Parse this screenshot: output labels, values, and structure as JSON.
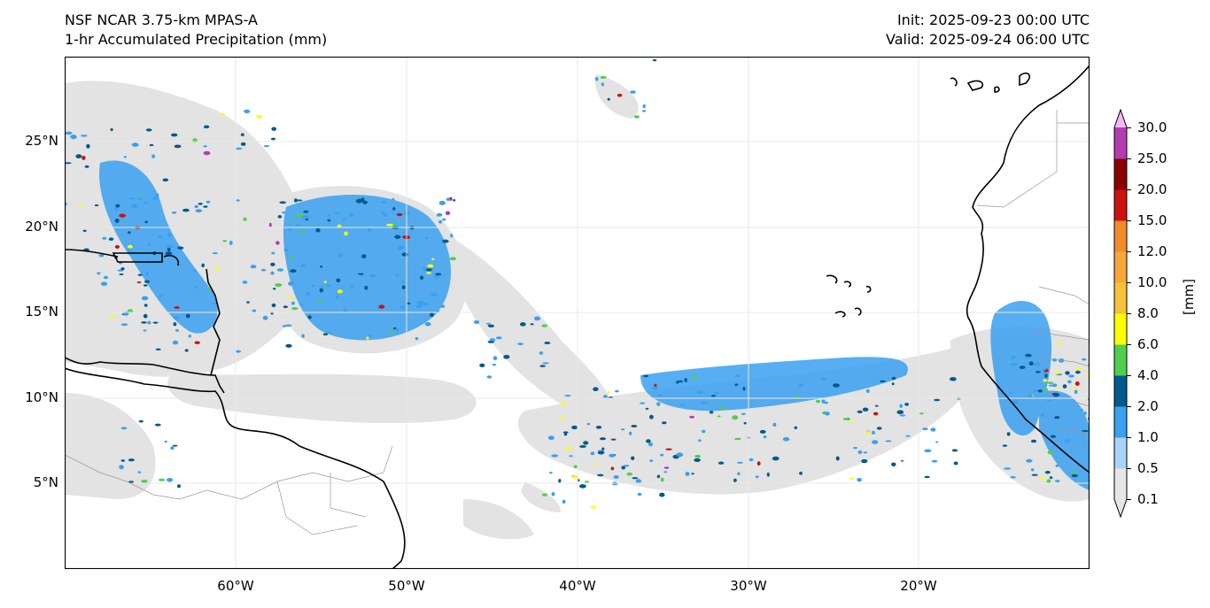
{
  "header": {
    "model": "NSF NCAR 3.75-km MPAS-A",
    "field": "1-hr Accumulated Precipitation (mm)",
    "init": "Init: 2025-09-23 00:00 UTC",
    "valid": "Valid: 2025-09-24 06:00 UTC"
  },
  "map": {
    "lon_range": [
      -70,
      -10
    ],
    "lat_range": [
      0,
      30
    ],
    "lat_labels": [
      "25°N",
      "20°N",
      "15°N",
      "10°N",
      "5°N"
    ],
    "lon_labels": [
      "60°W",
      "50°W",
      "40°W",
      "30°W",
      "20°W"
    ],
    "colors": {
      "land_outline": "#000000",
      "border": "#999999",
      "light_precip": "#e3e3e3",
      "moderate_precip": "#3aa0f0",
      "heavy_precip": "#005a8c"
    }
  },
  "colorbar": {
    "unit": "[mm]",
    "levels": [
      "0.1",
      "0.5",
      "1.0",
      "2.0",
      "4.0",
      "6.0",
      "8.0",
      "10.0",
      "12.0",
      "15.0",
      "20.0",
      "25.0",
      "30.0"
    ],
    "colors": [
      "#e6e6e6",
      "#a8d4f7",
      "#3aa0f0",
      "#005a8c",
      "#4fcf4f",
      "#ffff00",
      "#f7c23a",
      "#f7a83a",
      "#f28c28",
      "#cc1111",
      "#8b0000",
      "#b33cb3",
      "#f5b8f5"
    ]
  }
}
